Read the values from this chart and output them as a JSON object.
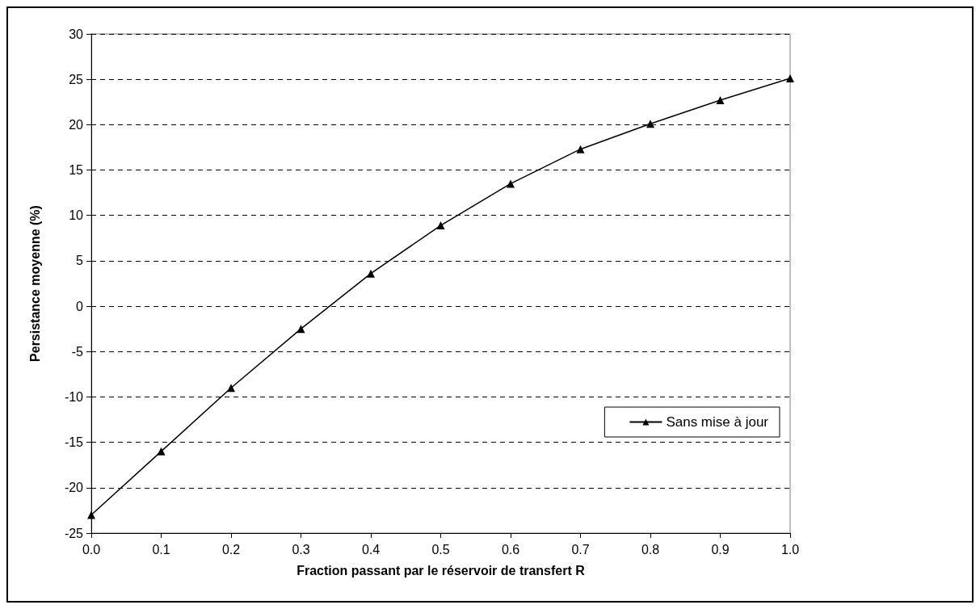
{
  "chart_data": {
    "type": "line",
    "xlabel": "Fraction passant par le réservoir de transfert R",
    "ylabel": "Persistance moyenne (%)",
    "x": [
      0,
      0.1,
      0.2,
      0.3,
      0.4,
      0.5,
      0.6,
      0.7,
      0.8,
      0.9,
      1.0
    ],
    "series": [
      {
        "name": "Sans mise à jour",
        "color": "#000000",
        "values": [
          -23,
          -16,
          -9,
          -2.5,
          3.6,
          8.9,
          13.5,
          17.3,
          20.1,
          22.7,
          25.1
        ]
      }
    ],
    "xlim": [
      0,
      1
    ],
    "xticks": [
      {
        "value": 0,
        "label": "0.0"
      },
      {
        "value": 0.1,
        "label": "0.1"
      },
      {
        "value": 0.2,
        "label": "0.2"
      },
      {
        "value": 0.3,
        "label": "0.3"
      },
      {
        "value": 0.4,
        "label": "0.4"
      },
      {
        "value": 0.5,
        "label": "0.5"
      },
      {
        "value": 0.6,
        "label": "0.6"
      },
      {
        "value": 0.7,
        "label": "0.7"
      },
      {
        "value": 0.8,
        "label": "0.8"
      },
      {
        "value": 0.9,
        "label": "0.9"
      },
      {
        "value": 1,
        "label": "1.0"
      }
    ],
    "ylim": [
      -25,
      30
    ],
    "yticks": [
      -25,
      -20,
      -15,
      -10,
      -5,
      0,
      5,
      10,
      15,
      20,
      25,
      30
    ],
    "grid": "y",
    "legend": "bottom right",
    "marker": "triangle",
    "line_style": "solid"
  }
}
